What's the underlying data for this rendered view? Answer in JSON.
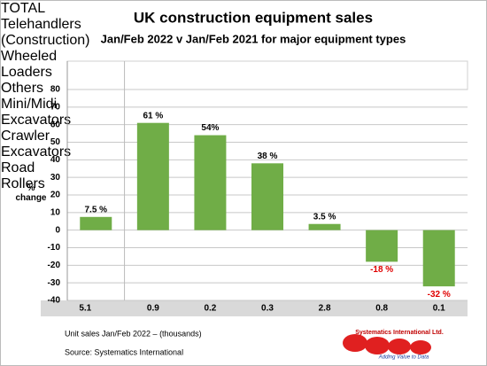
{
  "chart_data": {
    "type": "bar",
    "title": "UK construction equipment sales",
    "subtitle": "Jan/Feb 2022  v  Jan/Feb 2021 for major equipment types",
    "y_label": "% change",
    "categories": [
      "TOTAL",
      "Telehandlers (Construction)",
      "Wheeled Loaders",
      "Others",
      "Mini/Midi Excavators",
      "Crawler Excavators",
      "Road Rollers"
    ],
    "values": [
      7.5,
      61,
      54,
      38,
      3.5,
      -18,
      -32
    ],
    "value_labels": [
      "7.5 %",
      "61 %",
      "54%",
      "38 %",
      "3.5 %",
      "-18 %",
      "-32 %"
    ],
    "color": "#70ad47",
    "ylim": [
      -40,
      80
    ],
    "yticks": [
      -40,
      -30,
      -20,
      -10,
      0,
      10,
      20,
      30,
      40,
      50,
      60,
      70,
      80
    ],
    "grid": true,
    "unit_sales": [
      5.1,
      0.9,
      0.2,
      0.3,
      2.8,
      0.8,
      0.1
    ],
    "unit_sales_label": "Unit sales Jan/Feb 2022 – (thousands)",
    "source": "Source: Systematics International"
  },
  "logo": {
    "name": "Systematics International Ltd.",
    "tagline": "Adding Value to Data"
  }
}
